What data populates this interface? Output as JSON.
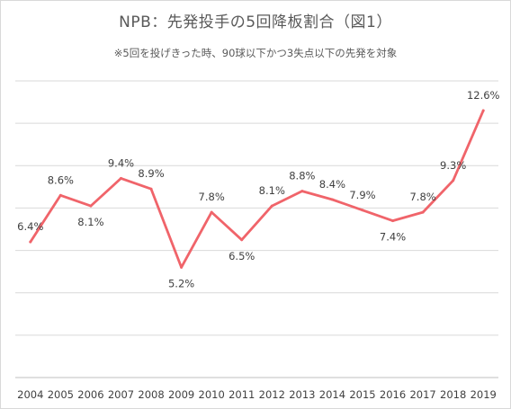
{
  "chart_data": {
    "type": "line",
    "title": "NPB：先発投手の5回降板割合（図1）",
    "subtitle": "※5回を投げきった時、90球以下かつ3失点以下の先発を対象",
    "categories": [
      "2004",
      "2005",
      "2006",
      "2007",
      "2008",
      "2009",
      "2010",
      "2011",
      "2012",
      "2013",
      "2014",
      "2015",
      "2016",
      "2017",
      "2018",
      "2019"
    ],
    "series": [
      {
        "values": [
          6.4,
          8.6,
          8.1,
          9.4,
          8.9,
          5.2,
          7.8,
          6.5,
          8.1,
          8.8,
          8.4,
          7.9,
          7.4,
          7.8,
          9.3,
          12.6
        ],
        "labels": [
          "6.4%",
          "8.6%",
          "8.1%",
          "9.4%",
          "8.9%",
          "5.2%",
          "7.8%",
          "6.5%",
          "8.1%",
          "8.8%",
          "8.4%",
          "7.9%",
          "7.4%",
          "7.8%",
          "9.3%",
          "12.6%"
        ],
        "color": "#f0646a"
      }
    ],
    "ylim": [
      0,
      14
    ],
    "grid": true,
    "xlabel": "",
    "ylabel": ""
  }
}
